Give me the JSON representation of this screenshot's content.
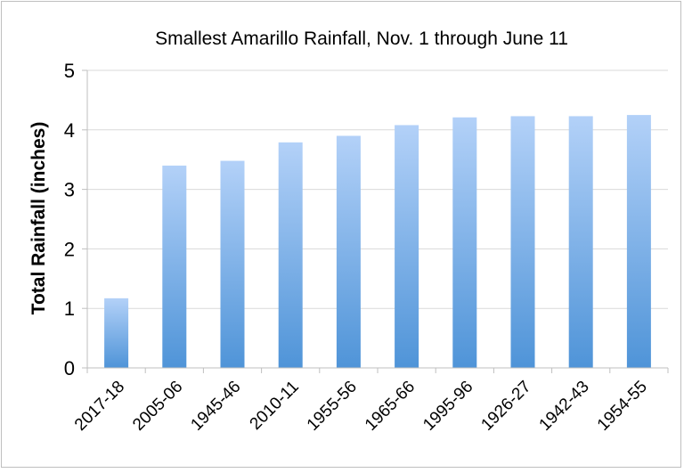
{
  "chart_data": {
    "type": "bar",
    "title": "Smallest Amarillo Rainfall, Nov. 1 through June 11",
    "xlabel": "",
    "ylabel": "Total Rainfall (inches)",
    "ylim": [
      0,
      5
    ],
    "yticks": [
      "0",
      "1",
      "2",
      "3",
      "4",
      "5"
    ],
    "grid": true,
    "categories": [
      "2017-18",
      "2005-06",
      "1945-46",
      "2010-11",
      "1955-56",
      "1965-66",
      "1995-96",
      "1926-27",
      "1942-43",
      "1954-55"
    ],
    "values": [
      1.17,
      3.4,
      3.48,
      3.79,
      3.9,
      4.08,
      4.21,
      4.23,
      4.23,
      4.25
    ],
    "colors": {
      "bar_top": "#b3d1f8",
      "bar_bottom": "#4f94d8",
      "grid": "#d9d9d9",
      "axis": "#bfbfbf"
    }
  }
}
